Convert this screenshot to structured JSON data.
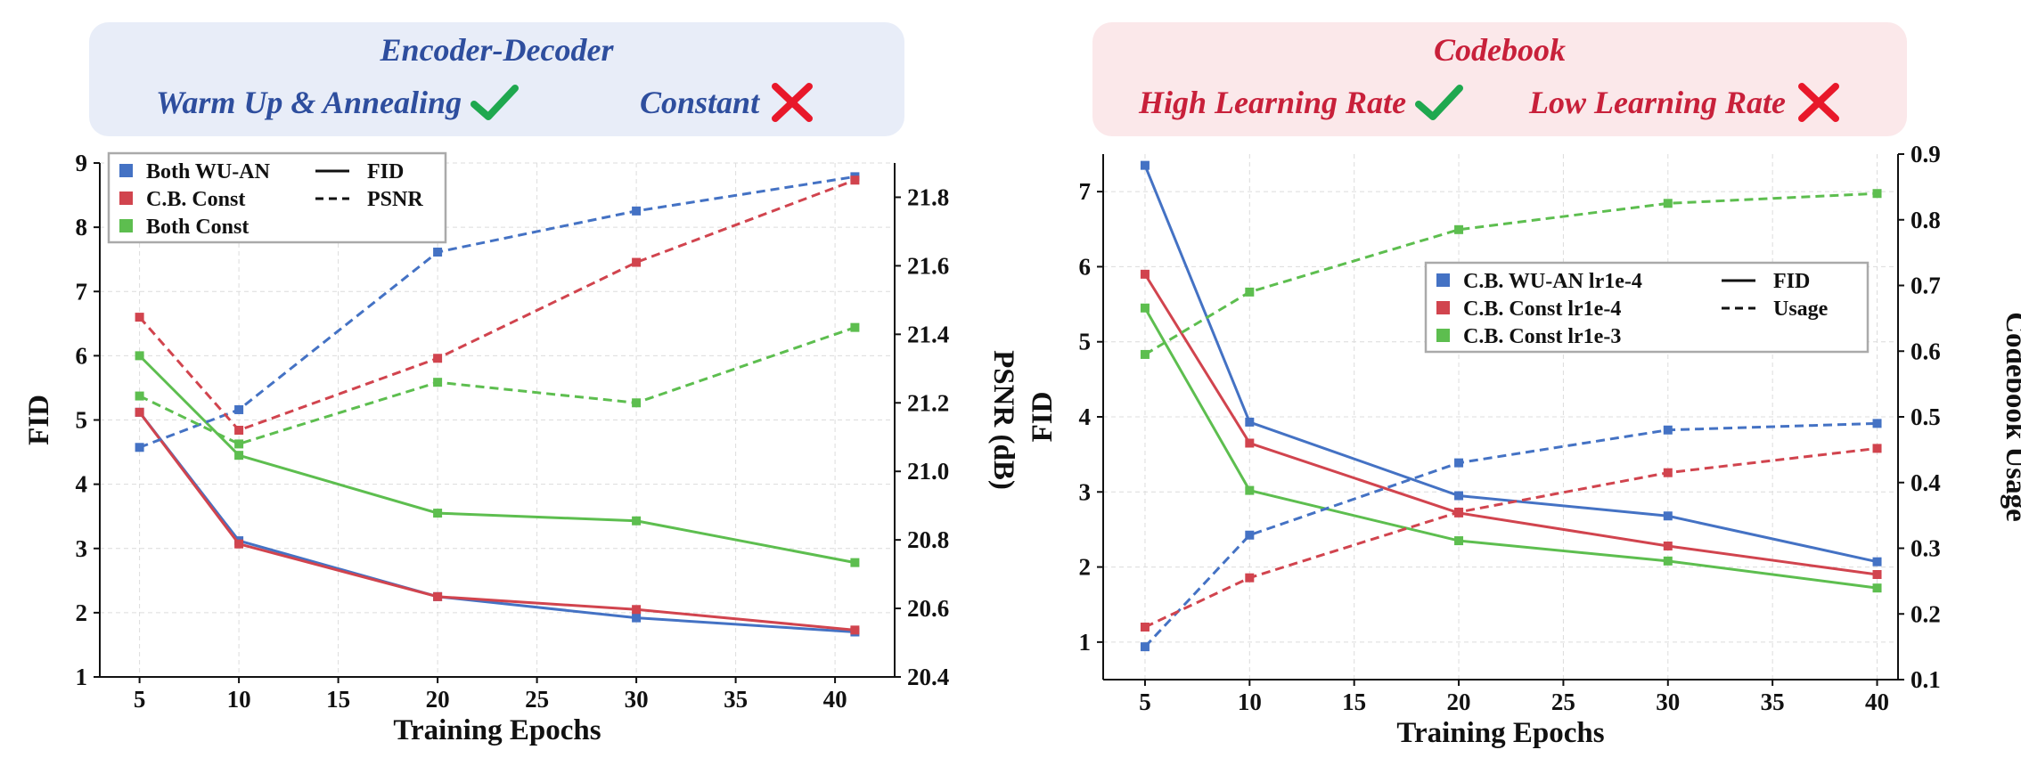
{
  "colors": {
    "blue": "#4472C4",
    "red": "#D1444E",
    "green": "#5DBE4F",
    "check": "#1FA84F",
    "cross": "#E8182A",
    "left_banner_bg": "#E8EDF8",
    "left_banner_text": "#2E4E9E",
    "right_banner_bg": "#FBE8EA",
    "right_banner_text": "#C8203A"
  },
  "banners": {
    "left": {
      "title": "Encoder-Decoder",
      "good": "Warm Up & Annealing",
      "good_icon": "check-icon",
      "bad": "Constant",
      "bad_icon": "cross-icon"
    },
    "right": {
      "title": "Codebook",
      "good": "High Learning Rate",
      "good_icon": "check-icon",
      "bad": "Low Learning Rate",
      "bad_icon": "cross-icon"
    }
  },
  "chart_data": [
    {
      "type": "line",
      "xlabel": "Training Epochs",
      "ylabel": "FID",
      "y2label": "PSNR (dB)",
      "xlim": [
        3,
        43
      ],
      "ylim": [
        1,
        9
      ],
      "y2lim": [
        20.4,
        21.9
      ],
      "xticks": [
        5,
        10,
        15,
        20,
        25,
        30,
        35,
        40
      ],
      "yticks": [
        1,
        2,
        3,
        4,
        5,
        6,
        7,
        8,
        9
      ],
      "y2ticks": [
        "20.4",
        "20.6",
        "20.8",
        "21.0",
        "21.2",
        "21.4",
        "21.6",
        "21.8"
      ],
      "grid": true,
      "legend_position": "top-left",
      "legend": {
        "series": [
          "Both WU-AN",
          "C.B. Const",
          "Both Const"
        ],
        "styles": [
          {
            "label": "FID",
            "dash": false
          },
          {
            "label": "PSNR",
            "dash": true
          }
        ]
      },
      "series": [
        {
          "name": "Both WU-AN",
          "color": "#4472C4",
          "metric": "FID",
          "axis": "left",
          "dashed": false,
          "x": [
            5,
            10,
            20,
            30,
            41
          ],
          "y": [
            5.12,
            3.12,
            2.25,
            1.92,
            1.7
          ]
        },
        {
          "name": "C.B. Const",
          "color": "#D1444E",
          "metric": "FID",
          "axis": "left",
          "dashed": false,
          "x": [
            5,
            10,
            20,
            30,
            41
          ],
          "y": [
            5.12,
            3.07,
            2.25,
            2.05,
            1.73
          ]
        },
        {
          "name": "Both Const",
          "color": "#5DBE4F",
          "metric": "FID",
          "axis": "left",
          "dashed": false,
          "x": [
            5,
            10,
            20,
            30,
            41
          ],
          "y": [
            6.0,
            4.45,
            3.55,
            3.43,
            2.78
          ]
        },
        {
          "name": "Both WU-AN",
          "color": "#4472C4",
          "metric": "PSNR",
          "axis": "right",
          "dashed": true,
          "x": [
            5,
            10,
            20,
            30,
            41
          ],
          "y": [
            21.07,
            21.18,
            21.64,
            21.76,
            21.86
          ]
        },
        {
          "name": "C.B. Const",
          "color": "#D1444E",
          "metric": "PSNR",
          "axis": "right",
          "dashed": true,
          "x": [
            5,
            10,
            20,
            30,
            41
          ],
          "y": [
            21.45,
            21.12,
            21.33,
            21.61,
            21.85
          ]
        },
        {
          "name": "Both Const",
          "color": "#5DBE4F",
          "metric": "PSNR",
          "axis": "right",
          "dashed": true,
          "x": [
            5,
            10,
            20,
            30,
            41
          ],
          "y": [
            21.22,
            21.08,
            21.26,
            21.2,
            21.42
          ]
        }
      ]
    },
    {
      "type": "line",
      "xlabel": "Training Epochs",
      "ylabel": "FID",
      "y2label": "Codebook Usage",
      "xlim": [
        3,
        41
      ],
      "ylim": [
        0.5,
        7.5
      ],
      "y2lim": [
        0.1,
        0.9
      ],
      "xticks": [
        5,
        10,
        15,
        20,
        25,
        30,
        35,
        40
      ],
      "yticks": [
        1,
        2,
        3,
        4,
        5,
        6,
        7
      ],
      "y2ticks": [
        "0.1",
        "0.2",
        "0.3",
        "0.4",
        "0.5",
        "0.6",
        "0.7",
        "0.8",
        "0.9"
      ],
      "grid": true,
      "legend_position": "center-right",
      "legend": {
        "series": [
          "C.B. WU-AN lr1e-4",
          "C.B. Const lr1e-4",
          "C.B. Const lr1e-3"
        ],
        "styles": [
          {
            "label": "FID",
            "dash": false
          },
          {
            "label": "Usage",
            "dash": true
          }
        ]
      },
      "series": [
        {
          "name": "C.B. WU-AN lr1e-4",
          "color": "#4472C4",
          "metric": "FID",
          "axis": "left",
          "dashed": false,
          "x": [
            5,
            10,
            20,
            30,
            40
          ],
          "y": [
            7.35,
            3.93,
            2.95,
            2.68,
            2.07
          ]
        },
        {
          "name": "C.B. Const lr1e-4",
          "color": "#D1444E",
          "metric": "FID",
          "axis": "left",
          "dashed": false,
          "x": [
            5,
            10,
            20,
            30,
            40
          ],
          "y": [
            5.9,
            3.65,
            2.72,
            2.28,
            1.9
          ]
        },
        {
          "name": "C.B. Const lr1e-3",
          "color": "#5DBE4F",
          "metric": "FID",
          "axis": "left",
          "dashed": false,
          "x": [
            5,
            10,
            20,
            30,
            40
          ],
          "y": [
            5.45,
            3.02,
            2.35,
            2.08,
            1.72
          ]
        },
        {
          "name": "C.B. WU-AN lr1e-4",
          "color": "#4472C4",
          "metric": "Usage",
          "axis": "right",
          "dashed": true,
          "x": [
            5,
            10,
            20,
            30,
            40
          ],
          "y": [
            0.15,
            0.32,
            0.43,
            0.48,
            0.49
          ]
        },
        {
          "name": "C.B. Const lr1e-4",
          "color": "#D1444E",
          "metric": "Usage",
          "axis": "right",
          "dashed": true,
          "x": [
            5,
            10,
            20,
            30,
            40
          ],
          "y": [
            0.18,
            0.255,
            0.355,
            0.415,
            0.452
          ]
        },
        {
          "name": "C.B. Const lr1e-3",
          "color": "#5DBE4F",
          "metric": "Usage",
          "axis": "right",
          "dashed": true,
          "x": [
            5,
            10,
            20,
            30,
            40
          ],
          "y": [
            0.595,
            0.69,
            0.785,
            0.825,
            0.84
          ]
        }
      ]
    }
  ]
}
